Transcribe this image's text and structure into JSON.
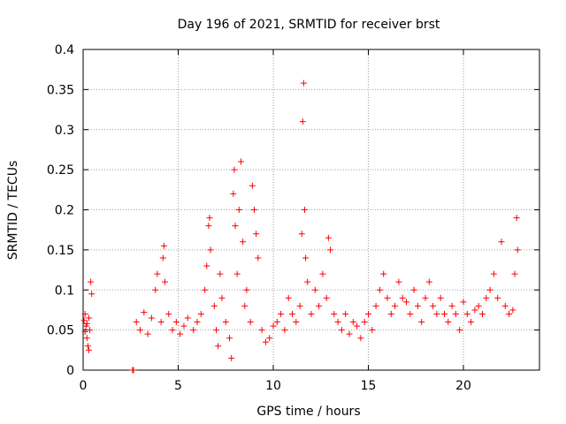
{
  "chart_data": {
    "type": "scatter",
    "title": "Day 196 of 2021, SRMTID for receiver brst",
    "xlabel": "GPS time / hours",
    "ylabel": "SRMTID / TECUs",
    "xlim": [
      0,
      24
    ],
    "ylim": [
      0,
      0.4
    ],
    "xticks": [
      0,
      5,
      10,
      15,
      20
    ],
    "xtick_labels": [
      "0",
      "5",
      "10",
      "15",
      "20"
    ],
    "yticks": [
      0,
      0.05,
      0.1,
      0.15,
      0.2,
      0.25,
      0.3,
      0.35,
      0.4
    ],
    "ytick_labels": [
      "0",
      "0.05",
      "0.1",
      "0.15",
      "0.2",
      "0.25",
      "0.3",
      "0.35",
      "0.4"
    ],
    "grid": true,
    "marker": "plus",
    "marker_color": "#ff0000",
    "series": [
      {
        "name": "SRMTID",
        "points": [
          [
            0.05,
            0.062
          ],
          [
            0.1,
            0.048
          ],
          [
            0.15,
            0.055
          ],
          [
            0.2,
            0.04
          ],
          [
            0.25,
            0.03
          ],
          [
            0.3,
            0.065
          ],
          [
            0.35,
            0.05
          ],
          [
            0.4,
            0.11
          ],
          [
            0.45,
            0.095
          ],
          [
            0.3,
            0.025
          ],
          [
            0.1,
            0.07
          ],
          [
            0.2,
            0.058
          ],
          [
            2.6,
            0.0
          ],
          [
            2.65,
            0.0
          ],
          [
            2.8,
            0.06
          ],
          [
            3.0,
            0.05
          ],
          [
            3.2,
            0.072
          ],
          [
            3.4,
            0.045
          ],
          [
            3.6,
            0.065
          ],
          [
            3.8,
            0.1
          ],
          [
            3.9,
            0.12
          ],
          [
            4.1,
            0.06
          ],
          [
            4.2,
            0.14
          ],
          [
            4.25,
            0.155
          ],
          [
            4.3,
            0.11
          ],
          [
            4.5,
            0.07
          ],
          [
            4.7,
            0.05
          ],
          [
            4.9,
            0.06
          ],
          [
            5.1,
            0.045
          ],
          [
            5.3,
            0.055
          ],
          [
            5.5,
            0.065
          ],
          [
            5.8,
            0.05
          ],
          [
            6.0,
            0.06
          ],
          [
            6.2,
            0.07
          ],
          [
            6.4,
            0.1
          ],
          [
            6.5,
            0.13
          ],
          [
            6.6,
            0.18
          ],
          [
            6.65,
            0.19
          ],
          [
            6.7,
            0.15
          ],
          [
            6.9,
            0.08
          ],
          [
            7.0,
            0.05
          ],
          [
            7.1,
            0.03
          ],
          [
            7.2,
            0.12
          ],
          [
            7.3,
            0.09
          ],
          [
            7.5,
            0.06
          ],
          [
            7.7,
            0.04
          ],
          [
            7.8,
            0.015
          ],
          [
            7.9,
            0.22
          ],
          [
            7.95,
            0.25
          ],
          [
            8.0,
            0.18
          ],
          [
            8.1,
            0.12
          ],
          [
            8.2,
            0.2
          ],
          [
            8.3,
            0.26
          ],
          [
            8.4,
            0.16
          ],
          [
            8.5,
            0.08
          ],
          [
            8.6,
            0.1
          ],
          [
            8.8,
            0.06
          ],
          [
            8.9,
            0.23
          ],
          [
            9.0,
            0.2
          ],
          [
            9.1,
            0.17
          ],
          [
            9.2,
            0.14
          ],
          [
            9.4,
            0.05
          ],
          [
            9.6,
            0.035
          ],
          [
            9.8,
            0.04
          ],
          [
            10.0,
            0.055
          ],
          [
            10.2,
            0.06
          ],
          [
            10.4,
            0.07
          ],
          [
            10.6,
            0.05
          ],
          [
            10.8,
            0.09
          ],
          [
            11.0,
            0.07
          ],
          [
            11.2,
            0.06
          ],
          [
            11.4,
            0.08
          ],
          [
            11.5,
            0.17
          ],
          [
            11.55,
            0.31
          ],
          [
            11.6,
            0.358
          ],
          [
            11.65,
            0.2
          ],
          [
            11.7,
            0.14
          ],
          [
            11.8,
            0.11
          ],
          [
            12.0,
            0.07
          ],
          [
            12.2,
            0.1
          ],
          [
            12.4,
            0.08
          ],
          [
            12.6,
            0.12
          ],
          [
            12.8,
            0.09
          ],
          [
            12.9,
            0.165
          ],
          [
            13.0,
            0.15
          ],
          [
            13.2,
            0.07
          ],
          [
            13.4,
            0.06
          ],
          [
            13.6,
            0.05
          ],
          [
            13.8,
            0.07
          ],
          [
            14.0,
            0.045
          ],
          [
            14.2,
            0.06
          ],
          [
            14.4,
            0.055
          ],
          [
            14.6,
            0.04
          ],
          [
            14.8,
            0.06
          ],
          [
            15.0,
            0.07
          ],
          [
            15.2,
            0.05
          ],
          [
            15.4,
            0.08
          ],
          [
            15.6,
            0.1
          ],
          [
            15.8,
            0.12
          ],
          [
            16.0,
            0.09
          ],
          [
            16.2,
            0.07
          ],
          [
            16.4,
            0.08
          ],
          [
            16.6,
            0.11
          ],
          [
            16.8,
            0.09
          ],
          [
            17.0,
            0.085
          ],
          [
            17.2,
            0.07
          ],
          [
            17.4,
            0.1
          ],
          [
            17.6,
            0.08
          ],
          [
            17.8,
            0.06
          ],
          [
            18.0,
            0.09
          ],
          [
            18.2,
            0.11
          ],
          [
            18.4,
            0.08
          ],
          [
            18.6,
            0.07
          ],
          [
            18.8,
            0.09
          ],
          [
            19.0,
            0.07
          ],
          [
            19.2,
            0.06
          ],
          [
            19.4,
            0.08
          ],
          [
            19.6,
            0.07
          ],
          [
            19.8,
            0.05
          ],
          [
            20.0,
            0.085
          ],
          [
            20.2,
            0.07
          ],
          [
            20.4,
            0.06
          ],
          [
            20.6,
            0.075
          ],
          [
            20.8,
            0.08
          ],
          [
            21.0,
            0.07
          ],
          [
            21.2,
            0.09
          ],
          [
            21.4,
            0.1
          ],
          [
            21.6,
            0.12
          ],
          [
            21.8,
            0.09
          ],
          [
            22.0,
            0.16
          ],
          [
            22.2,
            0.08
          ],
          [
            22.4,
            0.07
          ],
          [
            22.6,
            0.075
          ],
          [
            22.7,
            0.12
          ],
          [
            22.8,
            0.19
          ],
          [
            22.85,
            0.15
          ]
        ]
      }
    ]
  }
}
